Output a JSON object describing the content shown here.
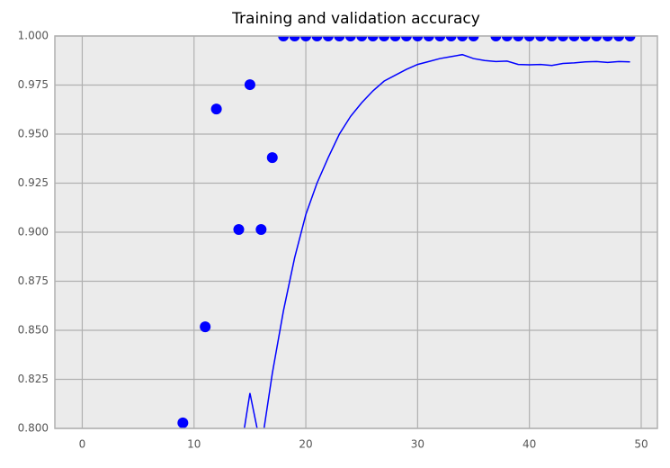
{
  "chart_data": {
    "type": "line_scatter",
    "title": "Training and validation accuracy",
    "series": [
      {
        "kind": "scatter",
        "color": "#0000ff",
        "x": [
          9,
          11,
          12,
          14,
          15,
          16,
          17,
          18,
          19,
          20,
          21,
          22,
          23,
          24,
          25,
          26,
          27,
          28,
          29,
          30,
          31,
          32,
          33,
          34,
          35,
          37,
          38,
          39,
          40,
          41,
          42,
          43,
          44,
          45,
          46,
          47,
          48,
          49
        ],
        "values": [
          0.8028,
          0.8518,
          0.9628,
          0.9014,
          0.9752,
          0.9014,
          0.938,
          1.0,
          1.0,
          1.0,
          1.0,
          1.0,
          1.0,
          1.0,
          1.0,
          1.0,
          1.0,
          1.0,
          1.0,
          1.0,
          1.0,
          1.0,
          1.0,
          1.0,
          1.0,
          1.0,
          1.0,
          1.0,
          1.0,
          1.0,
          1.0,
          1.0,
          1.0,
          1.0,
          1.0,
          1.0,
          1.0,
          1.0
        ]
      },
      {
        "kind": "line",
        "color": "#0000ff",
        "x": [
          14,
          15,
          16,
          17,
          18,
          19,
          20,
          21,
          22,
          23,
          24,
          25,
          26,
          27,
          28,
          29,
          30,
          31,
          32,
          33,
          34,
          35,
          36,
          37,
          38,
          39,
          40,
          41,
          42,
          43,
          44,
          45,
          46,
          47,
          48,
          49
        ],
        "values": [
          0.782,
          0.818,
          0.79,
          0.828,
          0.86,
          0.887,
          0.909,
          0.925,
          0.938,
          0.95,
          0.959,
          0.966,
          0.972,
          0.977,
          0.98,
          0.983,
          0.9855,
          0.987,
          0.9885,
          0.9895,
          0.9905,
          0.9885,
          0.9875,
          0.987,
          0.9872,
          0.9855,
          0.9853,
          0.9855,
          0.985,
          0.986,
          0.9863,
          0.9868,
          0.987,
          0.9865,
          0.987,
          0.9868
        ]
      }
    ],
    "xlim": [
      -2.45,
      51.45
    ],
    "xticks": [
      0,
      10,
      20,
      30,
      40,
      50
    ],
    "ylim": [
      0.8,
      1.0
    ],
    "yticks": [
      {
        "value": 0.8,
        "label": "0.800"
      },
      {
        "value": 0.825,
        "label": "0.825"
      },
      {
        "value": 0.85,
        "label": "0.850"
      },
      {
        "value": 0.875,
        "label": "0.875"
      },
      {
        "value": 0.9,
        "label": "0.900"
      },
      {
        "value": 0.925,
        "label": "0.925"
      },
      {
        "value": 0.95,
        "label": "0.950"
      },
      {
        "value": 0.975,
        "label": "0.975"
      },
      {
        "value": 1.0,
        "label": "1.000"
      }
    ],
    "grid": true
  }
}
